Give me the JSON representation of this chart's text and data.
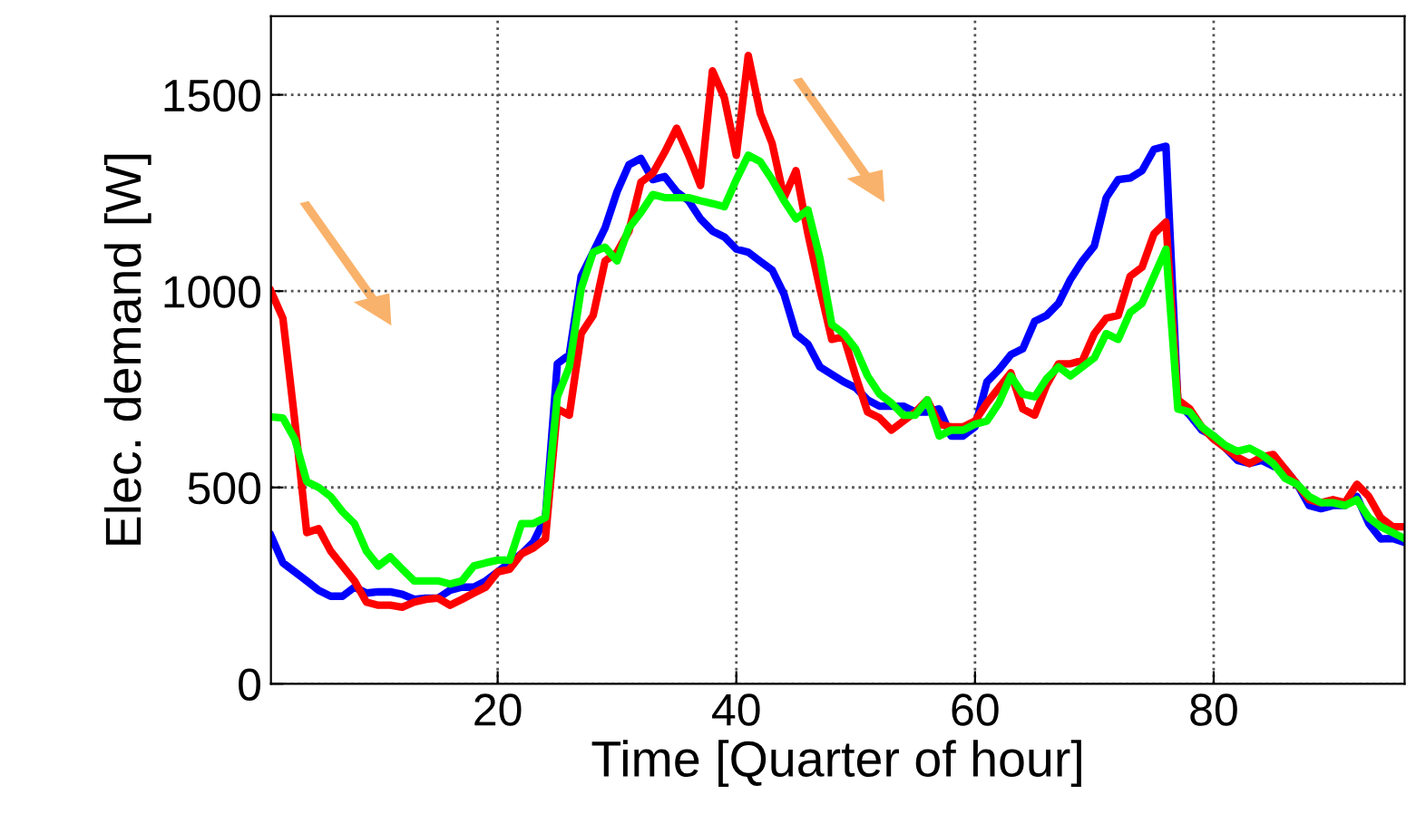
{
  "chart_data": {
    "type": "line",
    "xlabel": "Time [Quarter of hour]",
    "ylabel": "Elec. demand [W]",
    "x": [
      1,
      2,
      3,
      4,
      5,
      6,
      7,
      8,
      9,
      10,
      11,
      12,
      13,
      14,
      15,
      16,
      17,
      18,
      19,
      20,
      21,
      22,
      23,
      24,
      25,
      26,
      27,
      28,
      29,
      30,
      31,
      32,
      33,
      34,
      35,
      36,
      37,
      38,
      39,
      40,
      41,
      42,
      43,
      44,
      45,
      46,
      47,
      48,
      49,
      50,
      51,
      52,
      53,
      54,
      55,
      56,
      57,
      58,
      59,
      60,
      61,
      62,
      63,
      64,
      65,
      66,
      67,
      68,
      69,
      70,
      71,
      72,
      73,
      74,
      75,
      76,
      77,
      78,
      79,
      80,
      81,
      82,
      83,
      84,
      85,
      86,
      87,
      88,
      89,
      90,
      91,
      92,
      93,
      94,
      95,
      96
    ],
    "xlim": [
      1,
      96
    ],
    "xticks": [
      20,
      40,
      60,
      80
    ],
    "ylim": [
      0,
      1700
    ],
    "yticks": [
      0,
      500,
      1000,
      1500
    ],
    "grid": true,
    "line_style": "solid",
    "marker": "none",
    "series": [
      {
        "color": "#0000ff",
        "values": [
          377,
          308,
          285,
          262,
          238,
          223,
          223,
          246,
          231,
          234,
          234,
          228,
          215,
          218,
          218,
          238,
          246,
          246,
          262,
          285,
          308,
          331,
          361,
          423,
          815,
          838,
          1038,
          1099,
          1161,
          1253,
          1322,
          1338,
          1284,
          1292,
          1253,
          1230,
          1184,
          1153,
          1138,
          1107,
          1099,
          1076,
          1054,
          992,
          890,
          865,
          807,
          788,
          769,
          754,
          723,
          707,
          707,
          707,
          692,
          692,
          700,
          631,
          631,
          654,
          769,
          800,
          838,
          853,
          923,
          938,
          969,
          1030,
          1077,
          1115,
          1238,
          1284,
          1288,
          1307,
          1361,
          1369,
          715,
          684,
          646,
          631,
          600,
          569,
          561,
          569,
          554,
          546,
          508,
          454,
          446,
          454,
          454,
          477,
          408,
          369,
          370,
          360
        ]
      },
      {
        "color": "#ff0000",
        "values": [
          1000,
          931,
          669,
          385,
          395,
          338,
          300,
          262,
          208,
          200,
          200,
          195,
          208,
          215,
          218,
          200,
          215,
          231,
          246,
          285,
          292,
          331,
          346,
          369,
          700,
          684,
          892,
          938,
          1077,
          1099,
          1153,
          1277,
          1300,
          1354,
          1415,
          1346,
          1269,
          1561,
          1492,
          1346,
          1600,
          1453,
          1376,
          1238,
          1307,
          1146,
          1007,
          877,
          884,
          784,
          692,
          677,
          646,
          669,
          692,
          723,
          661,
          654,
          654,
          669,
          715,
          754,
          792,
          700,
          684,
          761,
          815,
          815,
          823,
          892,
          931,
          938,
          1038,
          1061,
          1146,
          1176,
          723,
          700,
          654,
          623,
          600,
          577,
          561,
          577,
          584,
          546,
          508,
          469,
          461,
          469,
          461,
          508,
          477,
          423,
          400,
          400
        ]
      },
      {
        "color": "#00ff00",
        "values": [
          680,
          677,
          623,
          515,
          500,
          477,
          438,
          408,
          338,
          300,
          323,
          292,
          262,
          262,
          262,
          254,
          262,
          300,
          308,
          315,
          315,
          408,
          408,
          423,
          731,
          807,
          1007,
          1099,
          1112,
          1077,
          1161,
          1200,
          1246,
          1238,
          1238,
          1238,
          1230,
          1223,
          1215,
          1284,
          1346,
          1330,
          1284,
          1230,
          1184,
          1207,
          1084,
          915,
          892,
          853,
          784,
          738,
          715,
          684,
          684,
          723,
          631,
          646,
          646,
          661,
          669,
          715,
          784,
          738,
          731,
          777,
          807,
          784,
          807,
          830,
          892,
          877,
          946,
          969,
          1038,
          1107,
          700,
          692,
          654,
          631,
          607,
          592,
          600,
          584,
          561,
          523,
          508,
          477,
          461,
          461,
          454,
          469,
          423,
          400,
          385,
          370
        ]
      }
    ]
  }
}
